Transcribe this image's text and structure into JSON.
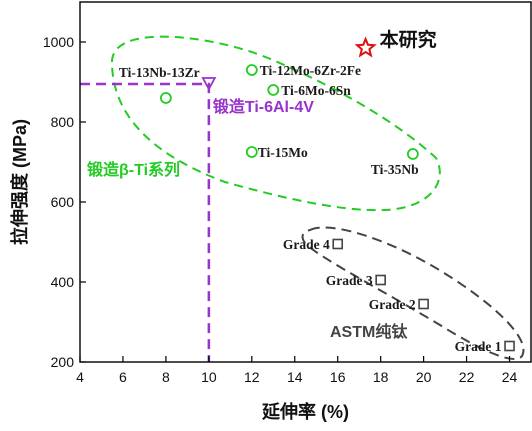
{
  "chart_data": {
    "type": "scatter",
    "xlabel": "延伸率 (%)",
    "ylabel": "拉伸强度 (MPa)",
    "xlim": [
      4,
      25
    ],
    "ylim": [
      200,
      1100
    ],
    "x_ticks": [
      4,
      6,
      8,
      10,
      12,
      14,
      16,
      18,
      20,
      22,
      24
    ],
    "y_ticks": [
      200,
      400,
      600,
      800,
      1000
    ],
    "grid": false,
    "groups": [
      {
        "name": "锻造β-Ti系列",
        "color": "#22cc22",
        "marker": "circle",
        "points": [
          {
            "label": "Ti-13Nb-13Zr",
            "x": 8,
            "y": 860
          },
          {
            "label": "Ti-12Mo-6Zr-2Fe",
            "x": 12,
            "y": 930
          },
          {
            "label": "Ti-6Mo-6Sn",
            "x": 13,
            "y": 880
          },
          {
            "label": "Ti-15Mo",
            "x": 12,
            "y": 725
          },
          {
            "label": "Ti-35Nb",
            "x": 19.5,
            "y": 720
          }
        ]
      },
      {
        "name": "ASTM纯钛",
        "color": "#444444",
        "marker": "square",
        "points": [
          {
            "label": "Grade 4",
            "x": 16,
            "y": 495
          },
          {
            "label": "Grade 3",
            "x": 18,
            "y": 405
          },
          {
            "label": "Grade 2",
            "x": 20,
            "y": 345
          },
          {
            "label": "Grade 1",
            "x": 24,
            "y": 240
          }
        ]
      }
    ],
    "reference": {
      "label": "锻造Ti-6Al-4V",
      "color": "#9933cc",
      "marker": "triangle-down",
      "x": 10,
      "y": 895
    },
    "highlight": {
      "label": "本研究",
      "color": "#dd1111",
      "marker": "star",
      "x": 17.3,
      "y": 985
    }
  }
}
